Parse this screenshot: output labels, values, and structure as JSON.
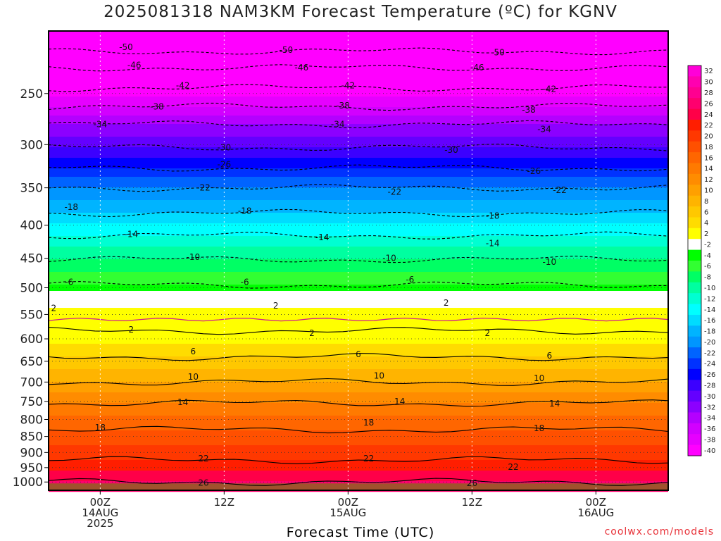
{
  "title": "2025081318 NAM3KM Forecast Temperature (ºC) for KGNV",
  "credit": "coolwx.com/models",
  "chart_data": {
    "type": "heatmap",
    "title": "2025081318 NAM3KM Forecast Temperature (ºC) for KGNV",
    "xlabel": "Forecast Time (UTC)",
    "ylabel": "",
    "x_range_hours_from_00Z14AUG": [
      -5,
      55
    ],
    "x_ticks": [
      {
        "hour": 0,
        "lines": [
          "00Z",
          "14AUG",
          "2025"
        ]
      },
      {
        "hour": 12,
        "lines": [
          "12Z"
        ]
      },
      {
        "hour": 24,
        "lines": [
          "00Z",
          "15AUG"
        ]
      },
      {
        "hour": 36,
        "lines": [
          "12Z"
        ]
      },
      {
        "hour": 48,
        "lines": [
          "00Z",
          "16AUG"
        ]
      }
    ],
    "y_scale": "log pressure (hPa)",
    "y_range": [
      1030,
      200
    ],
    "y_ticks": [
      250,
      300,
      350,
      400,
      450,
      500,
      550,
      600,
      650,
      700,
      750,
      800,
      850,
      900,
      950,
      1000
    ],
    "grid": true,
    "legend": "colorbar right",
    "colorbar_labels": [
      "32",
      "30",
      "28",
      "26",
      "24",
      "22",
      "20",
      "18",
      "16",
      "14",
      "12",
      "10",
      "8",
      "6",
      "4",
      "2",
      "-2",
      "-4",
      "-6",
      "-8",
      "-10",
      "-12",
      "-14",
      "-16",
      "-18",
      "-20",
      "-22",
      "-24",
      "-26",
      "-28",
      "-30",
      "-32",
      "-34",
      "-36",
      "-38",
      "-40"
    ],
    "colorbar_colors": [
      "#ff00d8",
      "#ff00b0",
      "#ff0090",
      "#ff006e",
      "#ff0048",
      "#ff1e00",
      "#ff3800",
      "#ff5000",
      "#ff6600",
      "#ff7a00",
      "#ff8c00",
      "#ffa000",
      "#ffb400",
      "#ffc800",
      "#ffdc00",
      "#ffff00",
      "#ffffff",
      "#00ff00",
      "#32ff32",
      "#00ff64",
      "#00ffa0",
      "#00ffd2",
      "#00ffff",
      "#00dcff",
      "#00b4ff",
      "#0096ff",
      "#0064ff",
      "#0032ff",
      "#0000ff",
      "#3c00ff",
      "#6400ff",
      "#8c00ff",
      "#b400ff",
      "#d200ff",
      "#e600ff",
      "#ff00ff"
    ],
    "contour_levels": [
      -50,
      -46,
      -42,
      -38,
      -34,
      -30,
      -26,
      -22,
      -18,
      -14,
      -10,
      -6,
      2,
      6,
      10,
      14,
      18,
      22,
      26
    ],
    "vertical_profile": [
      {
        "p": 1000,
        "t": 26
      },
      {
        "p": 925,
        "t": 22
      },
      {
        "p": 830,
        "t": 18
      },
      {
        "p": 755,
        "t": 14
      },
      {
        "p": 700,
        "t": 10
      },
      {
        "p": 640,
        "t": 6
      },
      {
        "p": 583,
        "t": 2
      },
      {
        "p": 538,
        "t": 2
      },
      {
        "p": 495,
        "t": -6
      },
      {
        "p": 452,
        "t": -10
      },
      {
        "p": 415,
        "t": -14
      },
      {
        "p": 383,
        "t": -18
      },
      {
        "p": 350,
        "t": -22
      },
      {
        "p": 326,
        "t": -26
      },
      {
        "p": 303,
        "t": -30
      },
      {
        "p": 279,
        "t": -34
      },
      {
        "p": 262,
        "t": -38
      },
      {
        "p": 245,
        "t": -42
      },
      {
        "p": 228,
        "t": -46
      },
      {
        "p": 215,
        "t": -50
      }
    ],
    "annotations": [
      {
        "text": "-50",
        "hour": 2.5,
        "p": 212
      },
      {
        "text": "-50",
        "hour": 18,
        "p": 214
      },
      {
        "text": "-50",
        "hour": 38.5,
        "p": 216
      },
      {
        "text": "-46",
        "hour": 3.3,
        "p": 226
      },
      {
        "text": "-46",
        "hour": 19.5,
        "p": 228
      },
      {
        "text": "-46",
        "hour": 36.5,
        "p": 228
      },
      {
        "text": "-42",
        "hour": 8,
        "p": 243
      },
      {
        "text": "-42",
        "hour": 24,
        "p": 243
      },
      {
        "text": "-42",
        "hour": 43.5,
        "p": 246
      },
      {
        "text": "-38",
        "hour": 5.5,
        "p": 262
      },
      {
        "text": "-38",
        "hour": 23.5,
        "p": 261
      },
      {
        "text": "-38",
        "hour": 41.5,
        "p": 265
      },
      {
        "text": "-34",
        "hour": 0,
        "p": 279
      },
      {
        "text": "-34",
        "hour": 23,
        "p": 279
      },
      {
        "text": "-34",
        "hour": 43,
        "p": 284
      },
      {
        "text": "-30",
        "hour": 12,
        "p": 303
      },
      {
        "text": "-30",
        "hour": 34,
        "p": 306
      },
      {
        "text": "-26",
        "hour": 12,
        "p": 322
      },
      {
        "text": "-26",
        "hour": 42,
        "p": 330
      },
      {
        "text": "-22",
        "hour": 10,
        "p": 350
      },
      {
        "text": "-22",
        "hour": 28.5,
        "p": 355
      },
      {
        "text": "-22",
        "hour": 44.5,
        "p": 353
      },
      {
        "text": "-18",
        "hour": -2.8,
        "p": 375
      },
      {
        "text": "-18",
        "hour": 14,
        "p": 380
      },
      {
        "text": "-18",
        "hour": 38,
        "p": 387
      },
      {
        "text": "-14",
        "hour": 3,
        "p": 413
      },
      {
        "text": "-14",
        "hour": 21.5,
        "p": 418
      },
      {
        "text": "-14",
        "hour": 38,
        "p": 427
      },
      {
        "text": "-10",
        "hour": 9,
        "p": 448
      },
      {
        "text": "-10",
        "hour": 28,
        "p": 450
      },
      {
        "text": "-10",
        "hour": 43.5,
        "p": 456
      },
      {
        "text": "-6",
        "hour": -3,
        "p": 490
      },
      {
        "text": "-6",
        "hour": 14,
        "p": 490
      },
      {
        "text": "-6",
        "hour": 30,
        "p": 486
      },
      {
        "text": "2",
        "hour": -4.5,
        "p": 538
      },
      {
        "text": "2",
        "hour": 17,
        "p": 533
      },
      {
        "text": "2",
        "hour": 33.5,
        "p": 528
      },
      {
        "text": "2",
        "hour": 3,
        "p": 581
      },
      {
        "text": "2",
        "hour": 20.5,
        "p": 588
      },
      {
        "text": "2",
        "hour": 37.5,
        "p": 588
      },
      {
        "text": "6",
        "hour": 9,
        "p": 628
      },
      {
        "text": "6",
        "hour": 25,
        "p": 634
      },
      {
        "text": "6",
        "hour": 43.5,
        "p": 637
      },
      {
        "text": "10",
        "hour": 9,
        "p": 687
      },
      {
        "text": "10",
        "hour": 27,
        "p": 685
      },
      {
        "text": "10",
        "hour": 42.5,
        "p": 691
      },
      {
        "text": "14",
        "hour": 8,
        "p": 752
      },
      {
        "text": "14",
        "hour": 29,
        "p": 750
      },
      {
        "text": "14",
        "hour": 44,
        "p": 756
      },
      {
        "text": "18",
        "hour": 0,
        "p": 824
      },
      {
        "text": "18",
        "hour": 26,
        "p": 809
      },
      {
        "text": "18",
        "hour": 42.5,
        "p": 826
      },
      {
        "text": "22",
        "hour": 10,
        "p": 920
      },
      {
        "text": "22",
        "hour": 26,
        "p": 920
      },
      {
        "text": "22",
        "hour": 40,
        "p": 948
      },
      {
        "text": "26",
        "hour": 10,
        "p": 1003
      },
      {
        "text": "26",
        "hour": 36,
        "p": 1005
      }
    ]
  }
}
